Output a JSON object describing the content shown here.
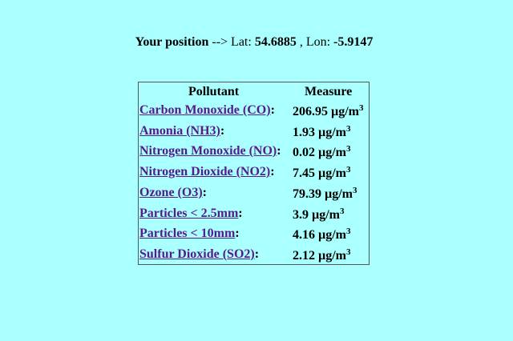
{
  "position": {
    "label": "Your position",
    "arrow": " --> ",
    "lat_label": "Lat: ",
    "lat": "54.6885",
    "sep": " , ",
    "lon_label": "Lon: ",
    "lon": "-5.9147"
  },
  "table": {
    "headers": [
      "Pollutant",
      "Measure"
    ],
    "rows": [
      {
        "name": "Carbon Monoxide (CO)",
        "value": "206.95 µg/m",
        "exp": "3"
      },
      {
        "name": "Amonia (NH3)",
        "value": "1.93 µg/m",
        "exp": "3"
      },
      {
        "name": "Nitrogen Monoxide (NO)",
        "value": "0.02 µg/m",
        "exp": "3"
      },
      {
        "name": "Nitrogen Dioxide (NO2)",
        "value": "7.45 µg/m",
        "exp": "3"
      },
      {
        "name": "Ozone (O3)",
        "value": "79.39 µg/m",
        "exp": "3"
      },
      {
        "name": "Particles < 2.5mm",
        "value": "3.9 µg/m",
        "exp": "3"
      },
      {
        "name": "Particles < 10mm",
        "value": "4.16 µg/m",
        "exp": "3"
      },
      {
        "name": "Sulfur Dioxide (SO2)",
        "value": "2.12 µg/m",
        "exp": "3"
      }
    ],
    "colon": ":"
  },
  "colors": {
    "background": "#aaffff",
    "link": "#551a8b",
    "border": "#555555"
  }
}
